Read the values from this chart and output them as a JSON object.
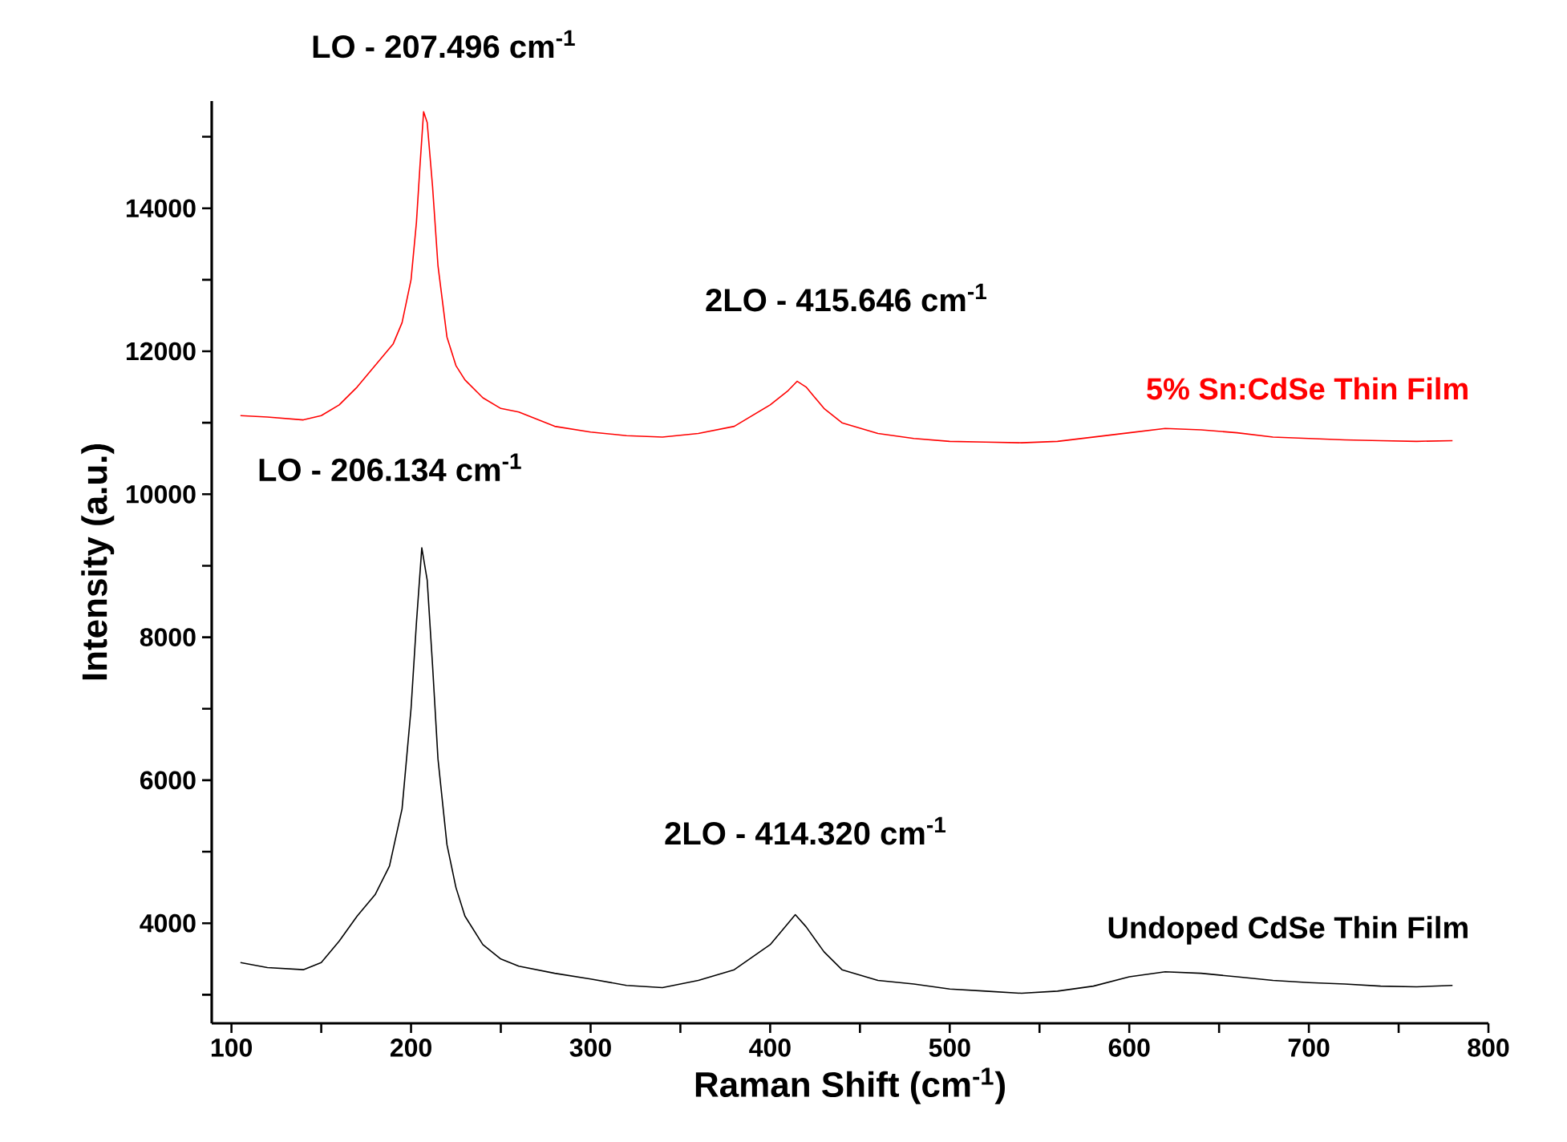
{
  "chart_data": {
    "type": "line",
    "xlabel": "Raman Shift (cm$^{-1}$)",
    "ylabel": "Intensity (a.u.)",
    "xlim": [
      89,
      800
    ],
    "ylim": [
      2600,
      15500
    ],
    "xticks": [
      100,
      {
        "value": 150,
        "label": null
      },
      200,
      {
        "value": 250,
        "label": null
      },
      300,
      {
        "value": 350,
        "label": null
      },
      400,
      {
        "value": 450,
        "label": null
      },
      500,
      {
        "value": 550,
        "label": null
      },
      600,
      {
        "value": 650,
        "label": null
      },
      700,
      {
        "value": 750,
        "label": null
      },
      800
    ],
    "yticks": [
      {
        "value": 3000,
        "label": null
      },
      4000,
      {
        "value": 5000,
        "label": null
      },
      6000,
      {
        "value": 7000,
        "label": null
      },
      8000,
      {
        "value": 9000,
        "label": null
      },
      10000,
      {
        "value": 11000,
        "label": null
      },
      12000,
      {
        "value": 13000,
        "label": null
      },
      14000,
      {
        "value": 15000,
        "label": null
      }
    ],
    "series": [
      {
        "name": "5% Sn:CdSe Thin Film",
        "color": "#ff0000",
        "x": [
          105,
          120,
          140,
          150,
          160,
          170,
          180,
          190,
          195,
          200,
          203,
          205,
          207,
          209,
          212,
          215,
          220,
          225,
          230,
          240,
          250,
          260,
          270,
          280,
          300,
          320,
          340,
          360,
          380,
          400,
          410,
          415,
          420,
          430,
          440,
          460,
          480,
          500,
          520,
          540,
          560,
          580,
          600,
          620,
          640,
          660,
          680,
          700,
          720,
          740,
          760,
          780
        ],
        "values": [
          11100,
          11080,
          11040,
          11100,
          11250,
          11500,
          11800,
          12100,
          12400,
          13000,
          13800,
          14600,
          15350,
          15200,
          14300,
          13200,
          12200,
          11800,
          11600,
          11350,
          11200,
          11150,
          11050,
          10950,
          10870,
          10820,
          10800,
          10850,
          10950,
          11250,
          11450,
          11580,
          11500,
          11200,
          11000,
          10850,
          10780,
          10740,
          10730,
          10720,
          10740,
          10800,
          10860,
          10920,
          10900,
          10860,
          10800,
          10780,
          10760,
          10750,
          10740,
          10750
        ]
      },
      {
        "name": "Undoped CdSe Thin Film",
        "color": "#000000",
        "x": [
          105,
          120,
          140,
          150,
          160,
          170,
          180,
          188,
          195,
          200,
          203,
          206,
          209,
          212,
          215,
          220,
          225,
          230,
          240,
          250,
          260,
          280,
          300,
          320,
          340,
          360,
          380,
          400,
          410,
          414,
          420,
          430,
          440,
          460,
          480,
          500,
          520,
          540,
          560,
          580,
          600,
          620,
          640,
          660,
          680,
          700,
          720,
          740,
          760,
          780
        ],
        "values": [
          3450,
          3380,
          3350,
          3450,
          3750,
          4100,
          4400,
          4800,
          5600,
          7000,
          8200,
          9250,
          8800,
          7600,
          6300,
          5100,
          4500,
          4100,
          3700,
          3500,
          3400,
          3300,
          3220,
          3130,
          3100,
          3200,
          3350,
          3700,
          4000,
          4120,
          3950,
          3600,
          3350,
          3200,
          3150,
          3080,
          3050,
          3020,
          3050,
          3120,
          3250,
          3320,
          3300,
          3250,
          3200,
          3170,
          3150,
          3120,
          3110,
          3130
        ]
      }
    ],
    "annotations": [
      {
        "text": "LO - 207.496 cm$^{-1}$",
        "x": 207.496,
        "y": 15350
      },
      {
        "text": "2LO - 415.646 cm$^{-1}$",
        "x": 415.646,
        "y": 11580
      },
      {
        "text": "LO - 206.134 cm$^{-1}$",
        "x": 206.134,
        "y": 9250
      },
      {
        "text": "2LO - 414.320 cm$^{-1}$",
        "x": 414.32,
        "y": 4120
      }
    ]
  }
}
